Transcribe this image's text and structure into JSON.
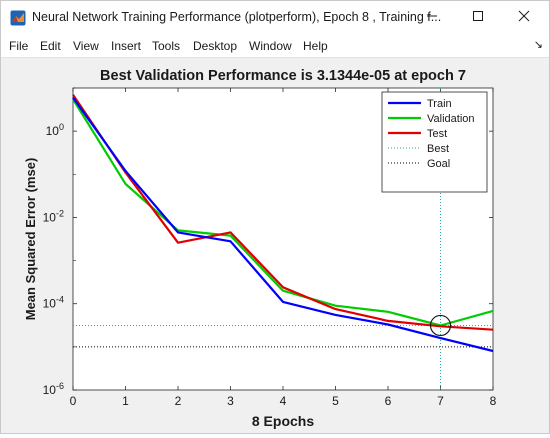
{
  "window": {
    "title": "Neural Network Training Performance (plotperform), Epoch 8 , Training f...",
    "controls": [
      "minimize",
      "maximize",
      "close"
    ]
  },
  "menu": {
    "items": [
      "File",
      "Edit",
      "View",
      "Insert",
      "Tools",
      "Desktop",
      "Window",
      "Help"
    ]
  },
  "colors": {
    "train": "#0000ff",
    "validation": "#00cc00",
    "test": "#e00000",
    "best": "#2ca6a6",
    "goal": "#000000",
    "axes_background": "#ffffff",
    "figure_background": "#f0f0f0"
  },
  "chart_data": {
    "type": "line",
    "title": "Best Validation Performance is 3.1344e-05 at epoch 7",
    "xlabel": "8 Epochs",
    "ylabel": "Mean Squared Error  (mse)",
    "y_scale": "log",
    "xlim": [
      0,
      8
    ],
    "ylim": [
      1e-06,
      10
    ],
    "x_ticks": [
      "0",
      "1",
      "2",
      "3",
      "4",
      "5",
      "6",
      "7",
      "8"
    ],
    "y_ticks": [
      {
        "value": 1e-06,
        "base": "10",
        "exp": "-6"
      },
      {
        "value": 0.0001,
        "base": "10",
        "exp": "-4"
      },
      {
        "value": 0.01,
        "base": "10",
        "exp": "-2"
      },
      {
        "value": 1,
        "base": "10",
        "exp": "0"
      }
    ],
    "x": [
      0,
      1,
      2,
      3,
      4,
      5,
      6,
      7,
      8
    ],
    "series": [
      {
        "name": "Train",
        "key": "train",
        "values": [
          6,
          0.12,
          0.0045,
          0.0028,
          0.00011,
          5.5e-05,
          3.3e-05,
          1.6e-05,
          8e-06
        ]
      },
      {
        "name": "Validation",
        "key": "validation",
        "values": [
          5.5,
          0.06,
          0.005,
          0.0038,
          0.0002,
          9e-05,
          6.5e-05,
          3.1344e-05,
          6.8e-05
        ]
      },
      {
        "name": "Test",
        "key": "test",
        "values": [
          7,
          0.11,
          0.0026,
          0.0045,
          0.00024,
          7.5e-05,
          4e-05,
          3e-05,
          2.5e-05
        ]
      }
    ],
    "reference_lines": [
      {
        "name": "Best",
        "key": "best",
        "style": "dotted",
        "vertical_x": 7,
        "horizontal_y": 3.1344e-05
      },
      {
        "name": "Goal",
        "key": "goal",
        "style": "dotted",
        "horizontal_y": 1e-05
      }
    ],
    "best_marker": {
      "epoch": 7,
      "value": 3.1344e-05
    },
    "legend_position": "top-right",
    "grid": false
  }
}
